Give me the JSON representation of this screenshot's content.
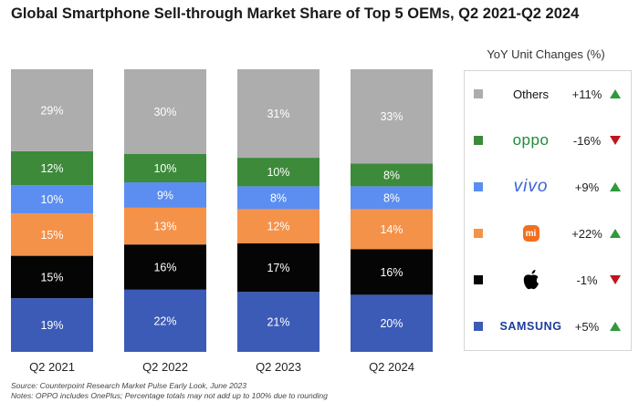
{
  "chart_data": {
    "type": "bar",
    "stacked": true,
    "title": "Global Smartphone Sell-through Market Share of Top 5 OEMs, Q2 2021-Q2 2024",
    "categories": [
      "Q2 2021",
      "Q2 2022",
      "Q2 2023",
      "Q2 2024"
    ],
    "ylim": [
      0,
      100
    ],
    "series": [
      {
        "name": "SAMSUNG",
        "color": "#3b5bb6",
        "values": [
          19,
          22,
          21,
          20
        ],
        "labels": [
          "19%",
          "22%",
          "21%",
          "20%"
        ]
      },
      {
        "name": "Apple",
        "color": "#050505",
        "values": [
          15,
          16,
          17,
          16
        ],
        "labels": [
          "15%",
          "16%",
          "17%",
          "16%"
        ]
      },
      {
        "name": "Xiaomi",
        "color": "#f5924a",
        "values": [
          15,
          13,
          12,
          14
        ],
        "labels": [
          "15%",
          "13%",
          "12%",
          "14%"
        ]
      },
      {
        "name": "vivo",
        "color": "#5b8ef0",
        "values": [
          10,
          9,
          8,
          8
        ],
        "labels": [
          "10%",
          "9%",
          "8%",
          "8%"
        ]
      },
      {
        "name": "oppo",
        "color": "#3d8a3b",
        "values": [
          12,
          10,
          10,
          8
        ],
        "labels": [
          "12%",
          "10%",
          "10%",
          "8%"
        ]
      },
      {
        "name": "Others",
        "color": "#adadad",
        "values": [
          29,
          30,
          31,
          33
        ],
        "labels": [
          "29%",
          "30%",
          "31%",
          "33%"
        ]
      }
    ]
  },
  "legend": {
    "heading": "YoY Unit Changes (%)",
    "items": [
      {
        "brand": "Others",
        "change": "+11%",
        "color": "#adadad",
        "direction": "up"
      },
      {
        "brand": "oppo",
        "change": "-16%",
        "color": "#3d8a3b",
        "direction": "down"
      },
      {
        "brand": "vivo",
        "change": "+9%",
        "color": "#5b8ef0",
        "direction": "up"
      },
      {
        "brand": "mi",
        "change": "+22%",
        "color": "#f5924a",
        "direction": "up"
      },
      {
        "brand": "apple",
        "change": "-1%",
        "color": "#050505",
        "direction": "down"
      },
      {
        "brand": "SAMSUNG",
        "change": "+5%",
        "color": "#3b5bb6",
        "direction": "up"
      }
    ]
  },
  "colors": {
    "up": "#2e9a3c",
    "down": "#c0151c"
  },
  "notes": {
    "source": "Source: Counterpoint Research Market Pulse Early Look, June 2023",
    "footnote": "Notes: OPPO includes OnePlus; Percentage totals may not add up to 100% due to rounding"
  }
}
